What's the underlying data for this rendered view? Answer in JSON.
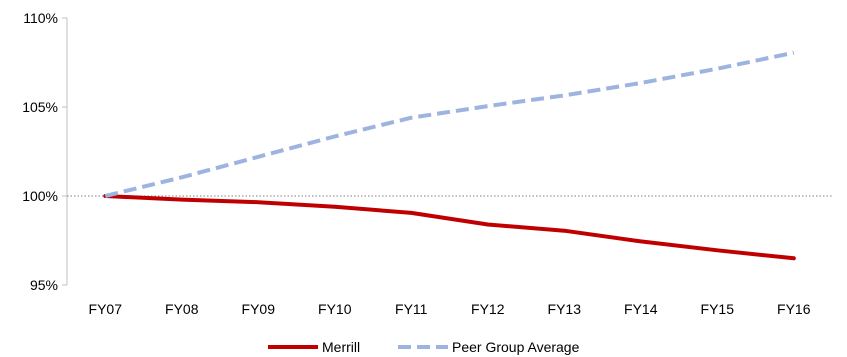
{
  "chart_data": {
    "type": "line",
    "categories": [
      "FY07",
      "FY08",
      "FY09",
      "FY10",
      "FY11",
      "FY12",
      "FY13",
      "FY14",
      "FY15",
      "FY16"
    ],
    "series": [
      {
        "name": "Merrill",
        "values": [
          100.0,
          99.8,
          99.65,
          99.4,
          99.05,
          98.4,
          98.05,
          97.45,
          96.95,
          96.5
        ],
        "color": "#C00000",
        "style": "solid"
      },
      {
        "name": "Peer Group Average",
        "values": [
          100.0,
          101.05,
          102.2,
          103.35,
          104.4,
          105.05,
          105.65,
          106.35,
          107.15,
          108.05
        ],
        "color": "#9DB3E0",
        "style": "dashed"
      }
    ],
    "y_ticks": [
      {
        "value": 95,
        "label": "95%"
      },
      {
        "value": 100,
        "label": "100%"
      },
      {
        "value": 105,
        "label": "105%"
      },
      {
        "value": 110,
        "label": "110%"
      }
    ],
    "ylim": [
      95,
      110
    ],
    "reference_line": {
      "value": 100,
      "color": "#808080",
      "style": "dotted"
    },
    "title": "",
    "xlabel": "",
    "ylabel": "",
    "grid": false,
    "legend_position": "bottom"
  }
}
